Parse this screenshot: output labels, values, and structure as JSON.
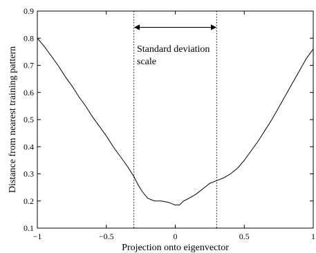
{
  "chart_data": {
    "type": "line",
    "xlabel": "Projection onto eigenvector",
    "ylabel": "Distance from nearest training pattern",
    "xlim": [
      -1,
      1
    ],
    "ylim": [
      0.1,
      0.9
    ],
    "xticks": [
      -1,
      -0.5,
      0,
      0.5,
      1
    ],
    "xtick_labels": [
      "−1",
      "−0.5",
      "0",
      "0.5",
      "1"
    ],
    "yticks": [
      0.1,
      0.2,
      0.3,
      0.4,
      0.5,
      0.6,
      0.7,
      0.8,
      0.9
    ],
    "ytick_labels": [
      "0.1",
      "0.2",
      "0.3",
      "0.4",
      "0.5",
      "0.6",
      "0.7",
      "0.8",
      "0.9"
    ],
    "grid": false,
    "series": [
      {
        "x": [
          -1.0,
          -0.95,
          -0.9,
          -0.85,
          -0.8,
          -0.75,
          -0.7,
          -0.65,
          -0.6,
          -0.55,
          -0.5,
          -0.45,
          -0.4,
          -0.35,
          -0.3,
          -0.27,
          -0.24,
          -0.2,
          -0.15,
          -0.1,
          -0.05,
          0.0,
          0.03,
          0.06,
          0.1,
          0.15,
          0.2,
          0.25,
          0.3,
          0.35,
          0.4,
          0.45,
          0.5,
          0.55,
          0.6,
          0.65,
          0.7,
          0.75,
          0.8,
          0.85,
          0.9,
          0.95,
          1.0
        ],
        "y": [
          0.8,
          0.77,
          0.735,
          0.7,
          0.66,
          0.625,
          0.585,
          0.55,
          0.51,
          0.475,
          0.44,
          0.4,
          0.365,
          0.33,
          0.29,
          0.26,
          0.235,
          0.21,
          0.2,
          0.2,
          0.195,
          0.185,
          0.185,
          0.2,
          0.21,
          0.225,
          0.245,
          0.265,
          0.275,
          0.285,
          0.3,
          0.32,
          0.35,
          0.385,
          0.42,
          0.46,
          0.5,
          0.545,
          0.59,
          0.635,
          0.68,
          0.725,
          0.76
        ]
      }
    ],
    "vlines": [
      -0.3,
      0.3
    ],
    "arrow": {
      "x1": -0.3,
      "x2": 0.3,
      "y": 0.84
    },
    "annotation": [
      "Standard deviation",
      "scale"
    ]
  }
}
